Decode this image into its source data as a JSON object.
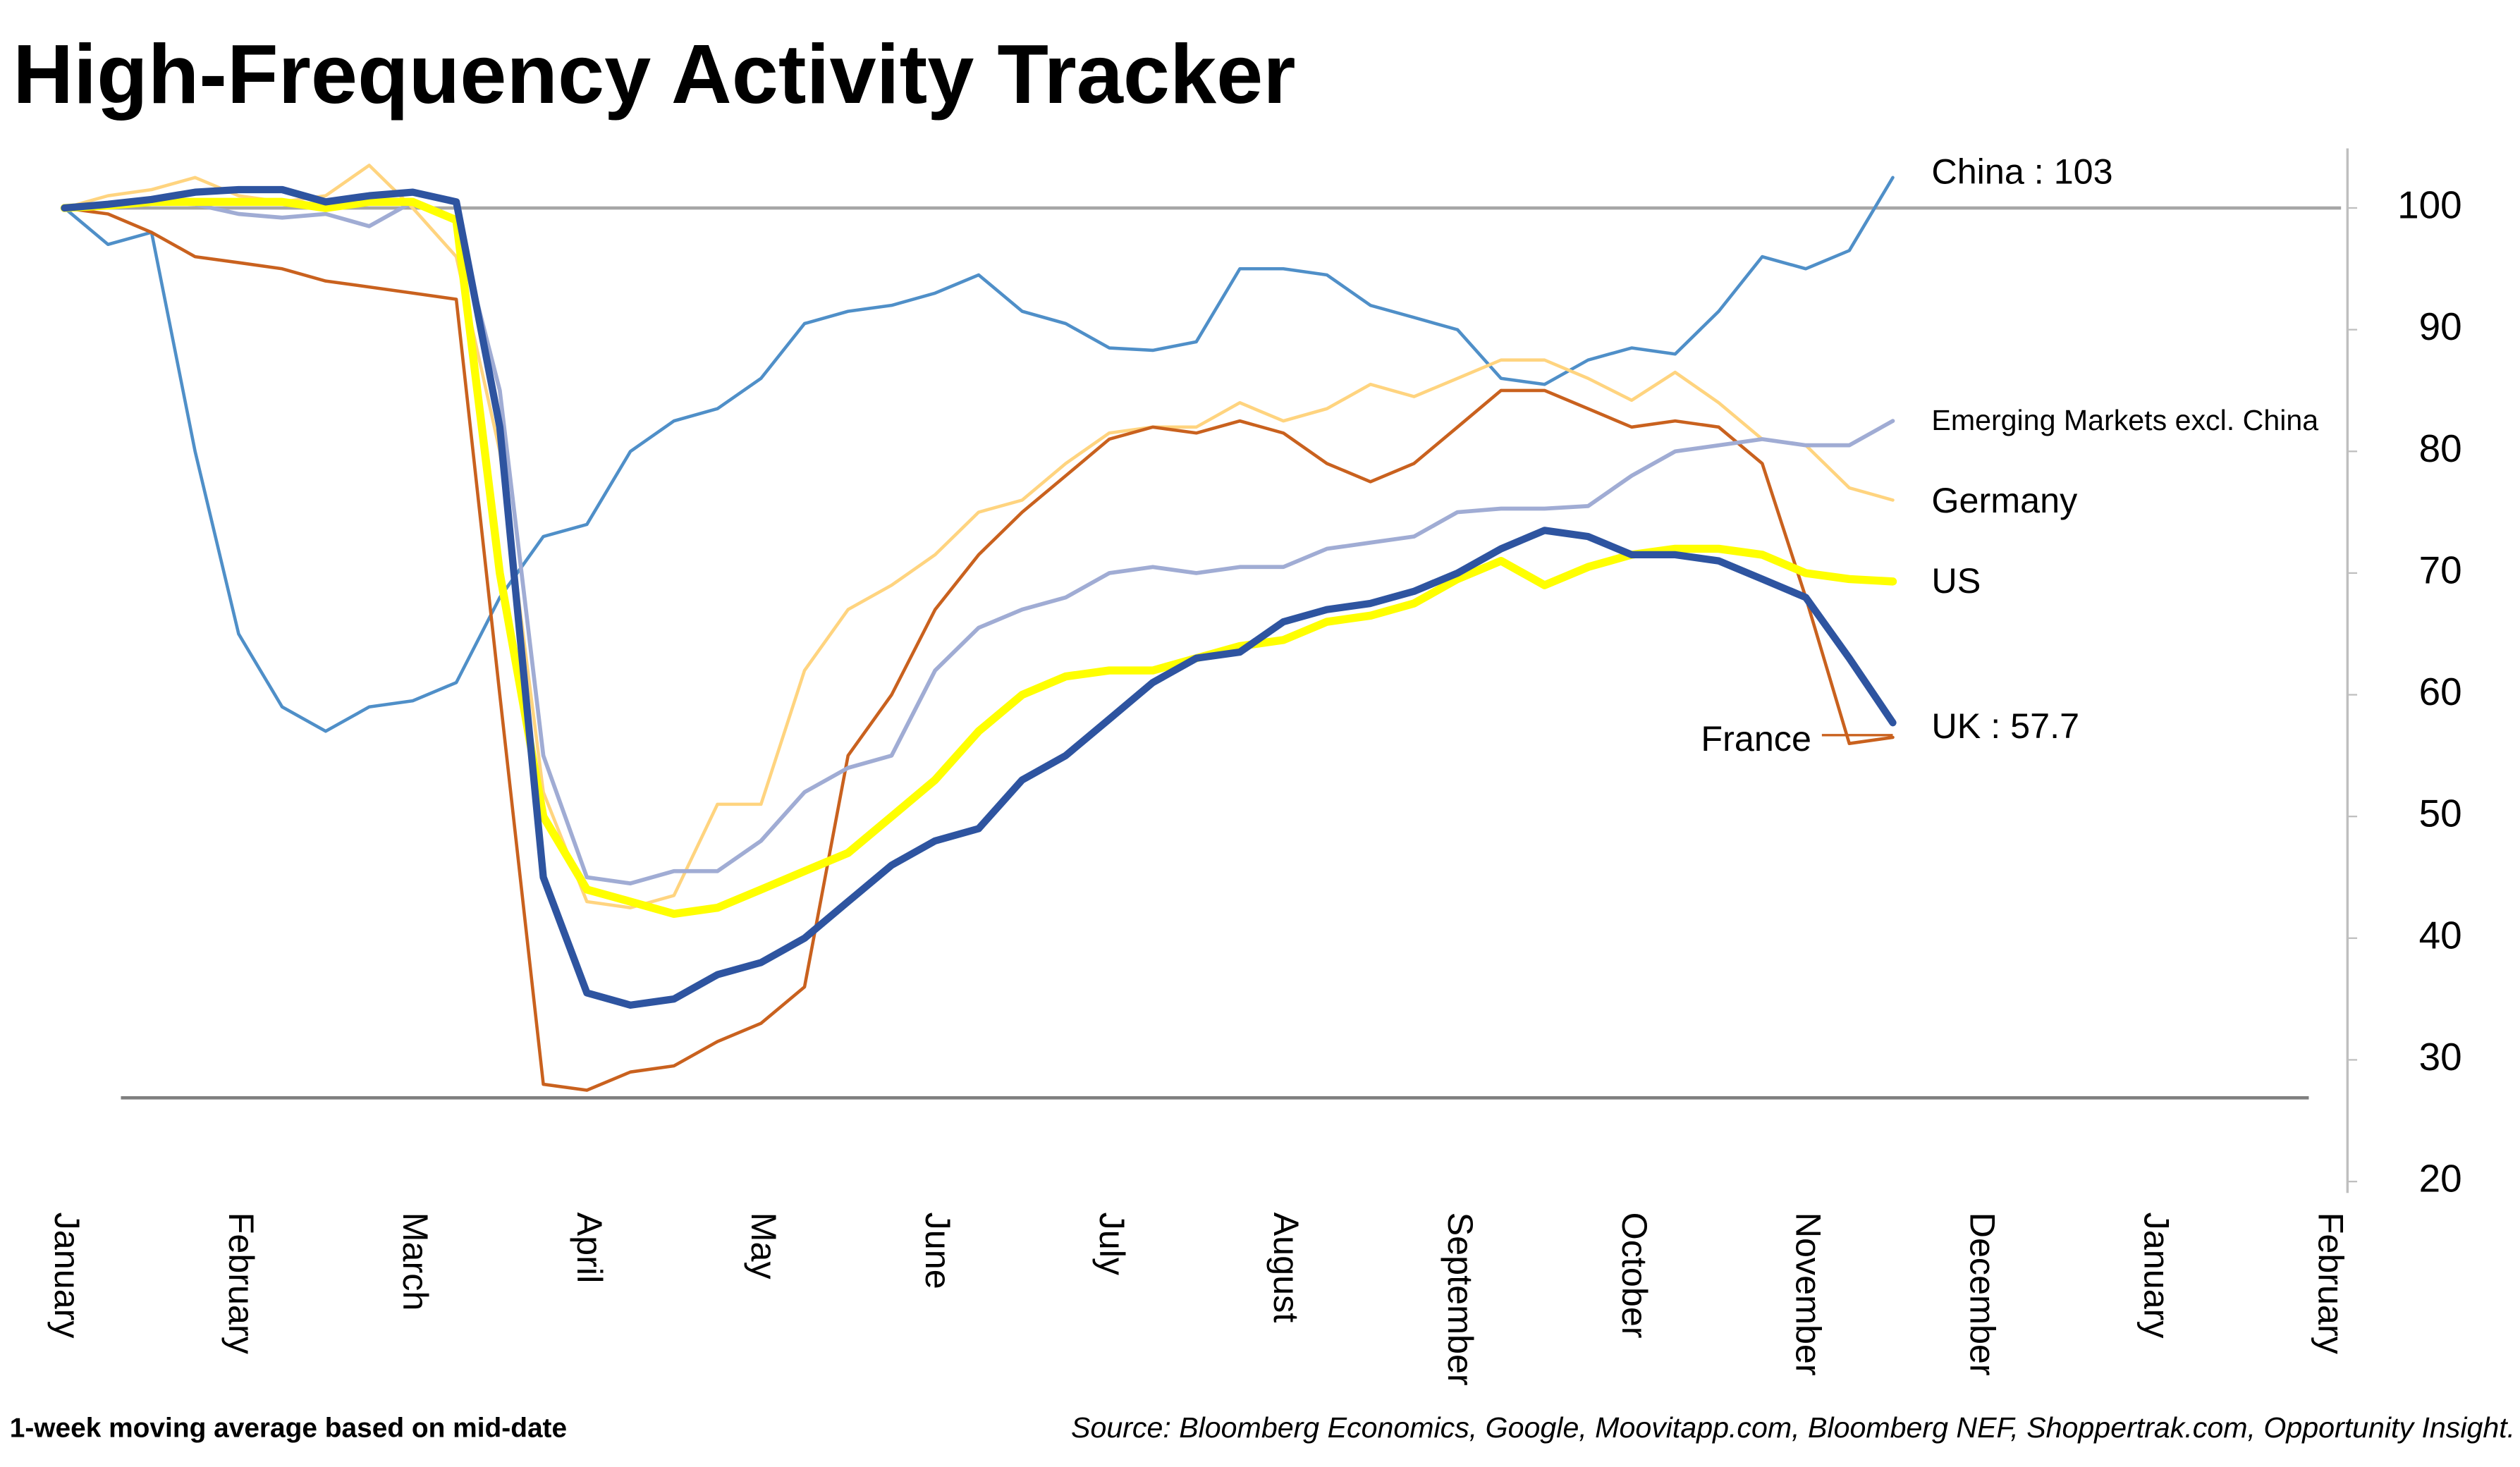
{
  "chart_data": {
    "type": "line",
    "title": "High-Frequency Activity Tracker",
    "footnote": "1-week moving average based on mid-date",
    "source": "Source: Bloomberg Economics, Google, Moovitapp.com, Bloomberg NEF, Shoppertrak.com, Opportunity Insight.",
    "categories": [
      "January",
      null,
      null,
      null,
      "February",
      null,
      null,
      null,
      "March",
      null,
      null,
      null,
      "April",
      null,
      null,
      null,
      "May",
      null,
      null,
      null,
      "June",
      null,
      null,
      null,
      "July",
      null,
      null,
      null,
      "August",
      null,
      null,
      null,
      "September",
      null,
      null,
      null,
      "October",
      null,
      null,
      null,
      "November",
      null,
      null,
      null,
      "December",
      null,
      null,
      null,
      "January",
      null,
      null,
      null,
      "February"
    ],
    "ylim": [
      19,
      104.5
    ],
    "yticks": [
      20,
      30,
      40,
      50,
      60,
      70,
      80,
      90,
      100
    ],
    "y_axis_side": "right",
    "series": [
      {
        "name": "China : 103",
        "color": "#4f8fc8",
        "values": [
          100,
          97,
          98,
          80,
          65,
          59,
          57,
          59,
          59.5,
          61,
          68,
          73,
          74,
          80,
          82.5,
          83.5,
          86,
          90.5,
          91.5,
          92,
          93,
          94.5,
          91.5,
          90.5,
          88.5,
          88.3,
          89,
          95,
          95,
          94.5,
          92,
          91,
          90,
          86,
          85.5,
          87.5,
          88.5,
          88,
          91.5,
          96,
          95,
          96.5,
          102.5,
          null,
          null,
          null,
          null,
          null,
          null,
          null,
          null,
          null,
          null
        ]
      },
      {
        "name": "Germany",
        "color": "#ffd47f",
        "values": [
          100,
          101,
          101.5,
          102.5,
          101,
          100.5,
          101,
          103.5,
          100,
          96,
          80,
          52,
          43,
          42.5,
          43.5,
          51,
          51,
          62,
          67,
          69,
          71.5,
          75,
          76,
          79,
          81.5,
          82,
          82,
          84,
          82.5,
          83.5,
          85.5,
          84.5,
          86,
          87.5,
          87.5,
          86,
          84.2,
          86.5,
          84,
          81,
          80.5,
          77,
          76,
          null,
          null,
          null,
          null,
          null,
          null,
          null,
          null,
          null,
          null
        ]
      },
      {
        "name": "France",
        "color": "#c9611e",
        "values": [
          100,
          99.5,
          98,
          96,
          95.5,
          95,
          94,
          93.5,
          93,
          92.5,
          60,
          28,
          27.5,
          29,
          29.5,
          31.5,
          33,
          36,
          55,
          60,
          67,
          71.5,
          75,
          78,
          81,
          82,
          81.5,
          82.5,
          81.5,
          79,
          77.5,
          79,
          82,
          85,
          85,
          83.5,
          82,
          82.5,
          82,
          79,
          68,
          56,
          56.5,
          null,
          null,
          null,
          null,
          null,
          null,
          null,
          null,
          null,
          null
        ]
      },
      {
        "name": "Emerging Markets excl. China",
        "color": "#a0acd4",
        "values": [
          100,
          100.2,
          100.5,
          100.3,
          99.5,
          99.2,
          99.5,
          98.5,
          100.5,
          99,
          85,
          55,
          45,
          44.5,
          45.5,
          45.5,
          48,
          52,
          54,
          55,
          62,
          65.5,
          67,
          68,
          70,
          70.5,
          70,
          70.5,
          70.5,
          72,
          72.5,
          73,
          75,
          75.3,
          75.3,
          75.5,
          78,
          80,
          80.5,
          81,
          80.5,
          80.5,
          82.5,
          null,
          null,
          null,
          null,
          null,
          null,
          null,
          null,
          null,
          null
        ]
      },
      {
        "name": "US",
        "color": "#ffff00",
        "values": [
          100,
          100.2,
          100.5,
          100.5,
          100.5,
          100.5,
          100,
          100.5,
          100.5,
          99,
          70,
          50,
          44,
          43,
          42,
          42.5,
          44,
          45.5,
          47,
          50,
          53,
          57,
          60,
          61.5,
          62,
          62,
          63,
          64,
          64.5,
          66,
          66.5,
          67.5,
          69.5,
          71,
          69,
          70.5,
          71.5,
          72,
          72,
          71.5,
          70,
          69.5,
          69.3,
          null,
          null,
          null,
          null,
          null,
          null,
          null,
          null,
          null,
          null
        ]
      },
      {
        "name": "UK : 57.7",
        "color": "#2e54a0",
        "values": [
          100,
          100.3,
          100.7,
          101.3,
          101.5,
          101.5,
          100.5,
          101,
          101.3,
          100.5,
          82,
          45,
          35.5,
          34.5,
          35,
          37,
          38,
          40,
          43,
          46,
          48,
          49,
          53,
          55,
          58,
          61,
          63,
          63.5,
          66,
          67,
          67.5,
          68.5,
          70,
          72,
          73.5,
          73,
          71.5,
          71.5,
          71,
          69.5,
          68,
          63,
          57.7,
          null,
          null,
          null,
          null,
          null,
          null,
          null,
          null,
          null,
          null
        ]
      }
    ]
  }
}
